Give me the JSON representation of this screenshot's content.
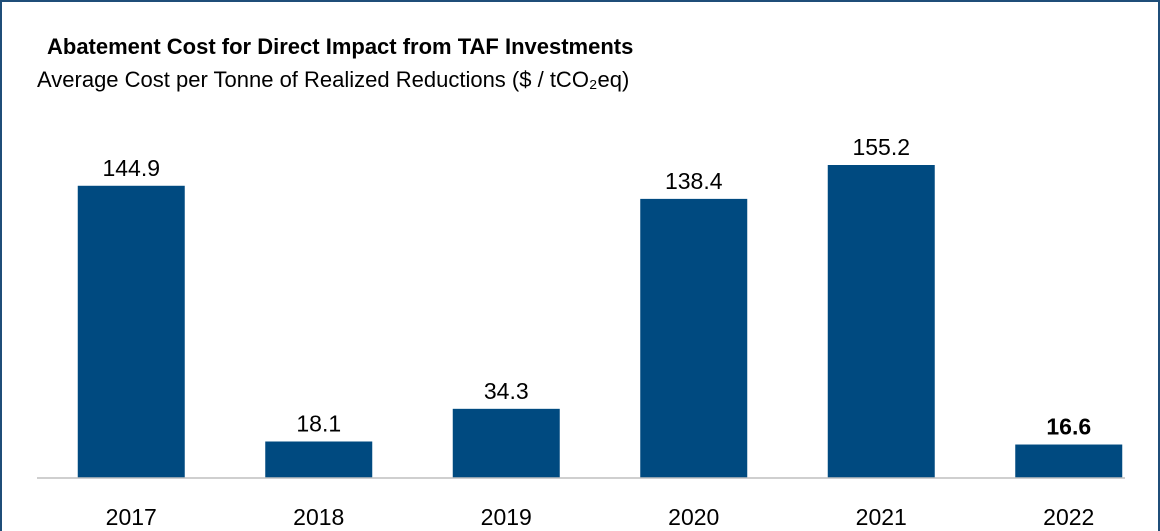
{
  "chart_data": {
    "type": "bar",
    "title": "Abatement Cost for Direct Impact from TAF Investments",
    "subtitle": "Average Cost per Tonne of Realized Reductions ($ / tCO₂eq)",
    "categories": [
      "2017",
      "2018",
      "2019",
      "2020",
      "2021",
      "2022"
    ],
    "values": [
      144.9,
      18.1,
      34.3,
      138.4,
      155.2,
      16.6
    ],
    "color": "#004a80"
  }
}
